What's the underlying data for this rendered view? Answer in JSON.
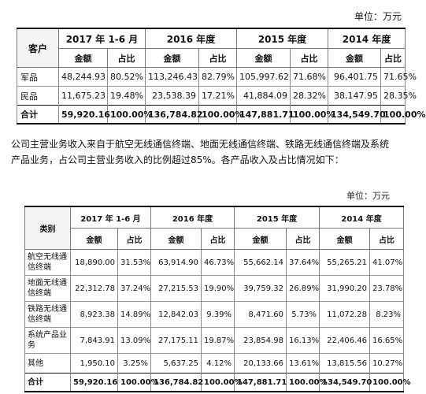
{
  "table1": {
    "unit": "单位：万元",
    "header_label": "客户",
    "periods": [
      "2017 年 1-6 月",
      "2016 年度",
      "2015 年度",
      "2014 年度"
    ],
    "amount_label": "金额",
    "ratio_label": "占比",
    "rows": [
      {
        "label": "军品",
        "cells": [
          "48,244.93",
          "80.52%",
          "113,246.43",
          "82.79%",
          "105,997.62",
          "71.68%",
          "96,401.75",
          "71.65%"
        ]
      },
      {
        "label": "民品",
        "cells": [
          "11,675.23",
          "19.48%",
          "23,538.39",
          "17.21%",
          "41,884.09",
          "28.32%",
          "38,147.95",
          "28.35%"
        ]
      }
    ],
    "total": {
      "label": "合计",
      "cells": [
        "59,920.16",
        "100.00%",
        "136,784.82",
        "100.00%",
        "147,881.71",
        "100.00%",
        "134,549.70",
        "100.00%"
      ]
    }
  },
  "paragraph": {
    "line1": "公司主营业务收入来自于航空无线通信终端、地面无线通信终端、铁路无线通信终端及系统",
    "line2": "产品业务，占公司主营业务收入的比例超过85%。各产品收入及占比情况如下："
  },
  "table2": {
    "unit": "单位：万元",
    "header_label": "类别",
    "periods": [
      "2017 年 1-6 月",
      "2016 年度",
      "2015 年度",
      "2014 年度"
    ],
    "amount_label": "金额",
    "ratio_label": "占比",
    "rows": [
      {
        "label": "航空无线通信终端",
        "cells": [
          "18,890.00",
          "31.53%",
          "63,914.90",
          "46.73%",
          "55,662.14",
          "37.64%",
          "55,265.21",
          "41.07%"
        ]
      },
      {
        "label": "地面无线通信终端",
        "cells": [
          "22,312.78",
          "37.24%",
          "27,215.53",
          "19.90%",
          "39,759.32",
          "26.89%",
          "31,990.20",
          "23.78%"
        ]
      },
      {
        "label": "铁路无线通信终端",
        "cells": [
          "8,923.38",
          "14.89%",
          "12,842.03",
          "9.39%",
          "8,471.60",
          "5.73%",
          "11,072.28",
          "8.23%"
        ]
      },
      {
        "label": "系统产品业务",
        "cells": [
          "7,843.91",
          "13.09%",
          "27,175.11",
          "19.87%",
          "23,854.98",
          "16.13%",
          "22,406.46",
          "16.65%"
        ]
      },
      {
        "label": "其他",
        "cells": [
          "1,950.10",
          "3.25%",
          "5,637.25",
          "4.12%",
          "20,133.66",
          "13.61%",
          "13,815.56",
          "10.27%"
        ]
      }
    ],
    "total": {
      "label": "合计",
      "cells": [
        "59,920.16",
        "100.00%",
        "136,784.82",
        "100.00%",
        "147,881.71",
        "100.00%",
        "134,549.70",
        "100.00%"
      ]
    }
  }
}
